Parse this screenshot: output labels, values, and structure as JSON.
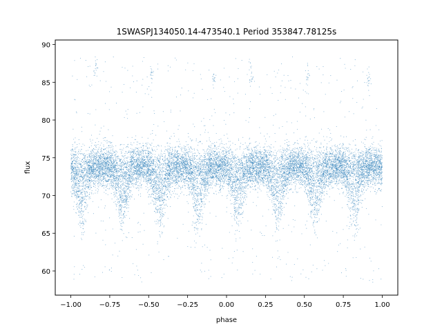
{
  "chart_data": {
    "type": "scatter",
    "title": "1SWASPJ134050.14-473540.1 Period 353847.78125s",
    "xlabel": "phase",
    "ylabel": "flux",
    "xlim": [
      -1.1,
      1.1
    ],
    "ylim": [
      56.8,
      90.6
    ],
    "xticks": [
      -1.0,
      -0.75,
      -0.5,
      -0.25,
      0.0,
      0.25,
      0.5,
      0.75,
      1.0
    ],
    "xtick_labels": [
      "−1.00",
      "−0.75",
      "−0.50",
      "−0.25",
      "0.00",
      "0.25",
      "0.50",
      "0.75",
      "1.00"
    ],
    "yticks": [
      60,
      65,
      70,
      75,
      80,
      85,
      90
    ],
    "ytick_labels": [
      "60",
      "65",
      "70",
      "75",
      "80",
      "85",
      "90"
    ],
    "grid": false,
    "marker_color": "#1f77b4",
    "x_range": [
      -1.0,
      1.0
    ],
    "baseline_flux": 73.8,
    "baseline_scatter": 1.3,
    "eclipse_min_flux": 66.5,
    "eclipse_centers": [
      -0.93,
      -0.67,
      -0.43,
      -0.18,
      0.07,
      0.33,
      0.57,
      0.82
    ],
    "eclipse_halfwidth": 0.05,
    "outlier_flux_range": [
      58.5,
      88.5
    ],
    "outlier_clusters": [
      {
        "x": -0.84,
        "y": 86.8
      },
      {
        "x": -0.48,
        "y": 85.8
      },
      {
        "x": -0.08,
        "y": 85.3
      },
      {
        "x": 0.16,
        "y": 85.5
      },
      {
        "x": 0.52,
        "y": 85.8
      },
      {
        "x": 0.91,
        "y": 85.5
      }
    ]
  }
}
